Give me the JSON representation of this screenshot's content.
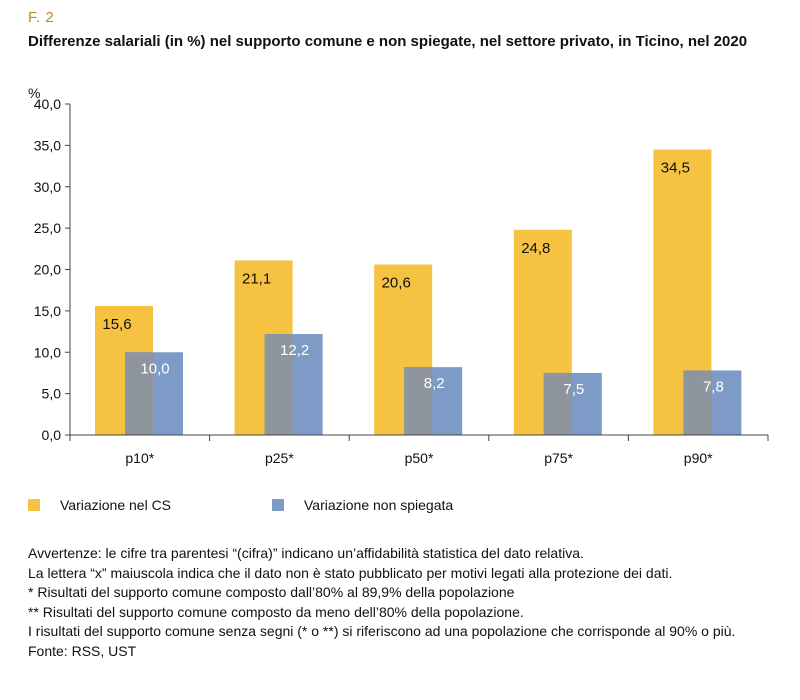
{
  "figure": {
    "number": "F. 2",
    "title": "Differenze salariali (in %) nel supporto comune e non spiegate, nel settore privato, in Ticino, nel 2020"
  },
  "chart_data": {
    "type": "bar",
    "unit_label": "%",
    "categories": [
      "p10*",
      "p25*",
      "p50*",
      "p75*",
      "p90*"
    ],
    "series": [
      {
        "name": "Variazione nel CS",
        "color": "#f5c242",
        "values": [
          15.6,
          21.1,
          20.6,
          24.8,
          34.5
        ],
        "labels": [
          "15,6",
          "21,1",
          "20,6",
          "24,8",
          "34,5"
        ]
      },
      {
        "name": "Variazione non spiegata",
        "color": "#7d9bc6",
        "values": [
          10.0,
          12.2,
          8.2,
          7.5,
          7.8
        ],
        "labels": [
          "10,0",
          "12,2",
          "8,2",
          "7,5",
          "7,8"
        ]
      }
    ],
    "ylim": [
      0,
      40
    ],
    "yticks": [
      0,
      5,
      10,
      15,
      20,
      25,
      30,
      35,
      40
    ],
    "ytick_labels": [
      "0,0",
      "5,0",
      "10,0",
      "15,0",
      "20,0",
      "25,0",
      "30,0",
      "35,0",
      "40,0"
    ],
    "grid": false,
    "legend_position": "bottom-left"
  },
  "notes": [
    "Avvertenze: le cifre tra parentesi “(cifra)” indicano un’affidabilità statistica del dato relativa.",
    "La lettera “x” maiuscola indica che il dato non è stato pubblicato per motivi legati alla protezione dei dati.",
    "*  Risultati del supporto comune composto dall’80% al 89,9% della popolazione",
    "** Risultati del supporto comune composto da meno dell’80% della popolazione.",
    "I risultati del supporto comune senza segni (* o **) si riferiscono ad una popolazione che corrisponde al 90% o più.",
    "Fonte: RSS, UST"
  ]
}
